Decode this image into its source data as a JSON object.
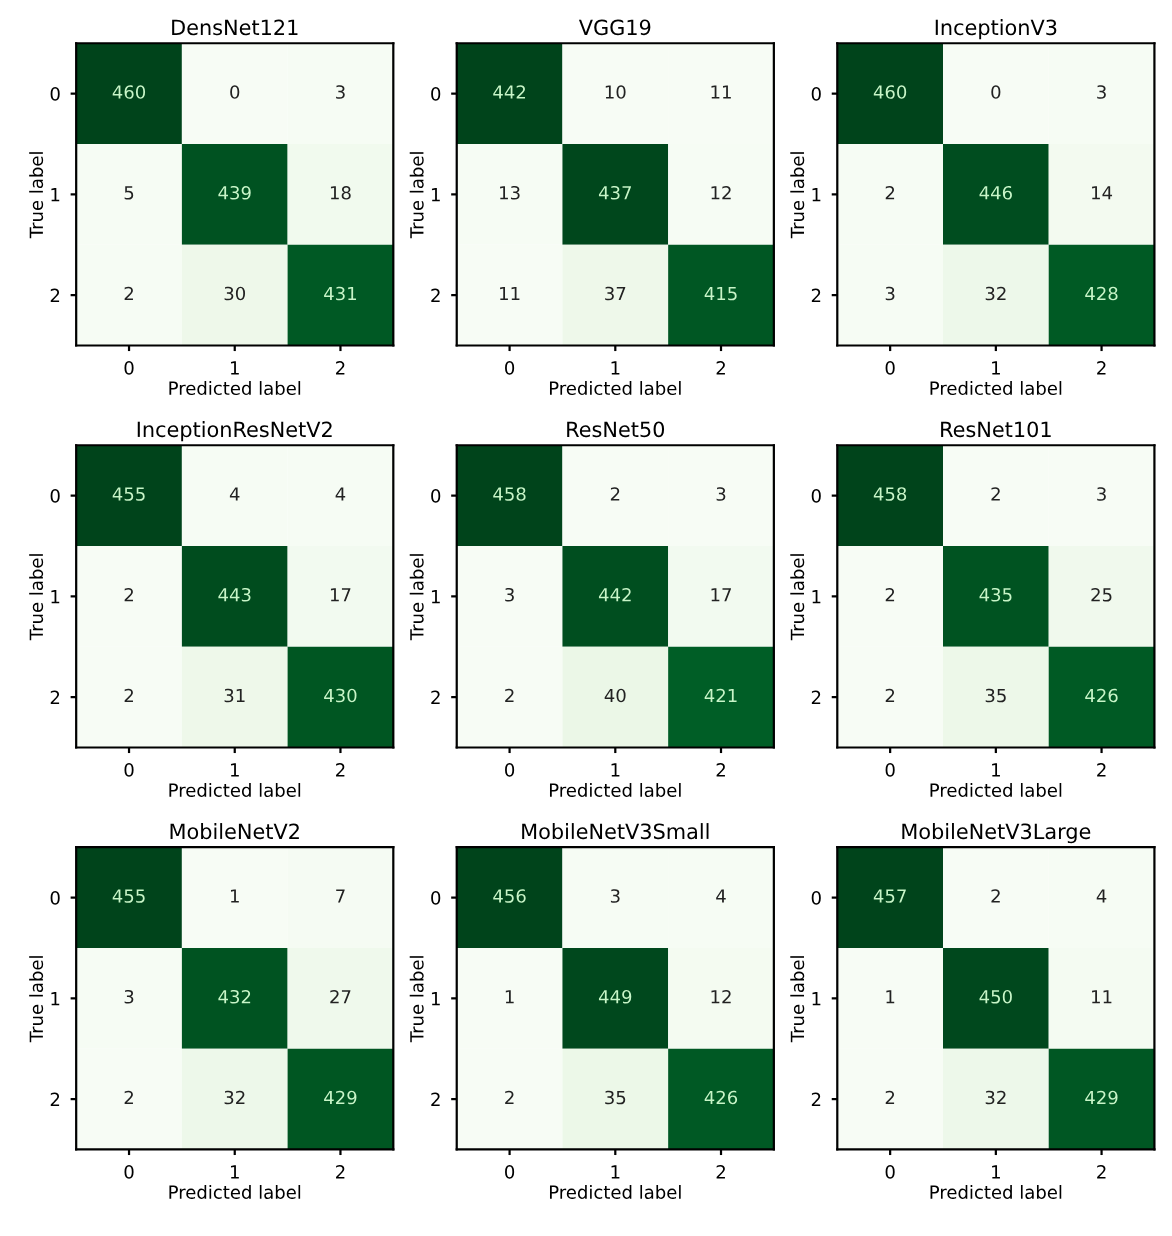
{
  "chart_data": [
    {
      "type": "heatmap",
      "title": "DensNet121",
      "xlabel": "Predicted label",
      "ylabel": "True label",
      "categories": [
        "0",
        "1",
        "2"
      ],
      "y_categories": [
        "0",
        "1",
        "2"
      ],
      "cells": [
        [
          460,
          0,
          3
        ],
        [
          5,
          439,
          18
        ],
        [
          2,
          30,
          431
        ]
      ],
      "data_labels": true
    },
    {
      "type": "heatmap",
      "title": "VGG19",
      "xlabel": "Predicted label",
      "ylabel": "True label",
      "categories": [
        "0",
        "1",
        "2"
      ],
      "y_categories": [
        "0",
        "1",
        "2"
      ],
      "cells": [
        [
          442,
          10,
          11
        ],
        [
          13,
          437,
          12
        ],
        [
          11,
          37,
          415
        ]
      ],
      "data_labels": true
    },
    {
      "type": "heatmap",
      "title": "InceptionV3",
      "xlabel": "Predicted label",
      "ylabel": "True label",
      "categories": [
        "0",
        "1",
        "2"
      ],
      "y_categories": [
        "0",
        "1",
        "2"
      ],
      "cells": [
        [
          460,
          0,
          3
        ],
        [
          2,
          446,
          14
        ],
        [
          3,
          32,
          428
        ]
      ],
      "data_labels": true
    },
    {
      "type": "heatmap",
      "title": "InceptionResNetV2",
      "xlabel": "Predicted label",
      "ylabel": "True label",
      "categories": [
        "0",
        "1",
        "2"
      ],
      "y_categories": [
        "0",
        "1",
        "2"
      ],
      "cells": [
        [
          455,
          4,
          4
        ],
        [
          2,
          443,
          17
        ],
        [
          2,
          31,
          430
        ]
      ],
      "data_labels": true
    },
    {
      "type": "heatmap",
      "title": "ResNet50",
      "xlabel": "Predicted label",
      "ylabel": "True label",
      "categories": [
        "0",
        "1",
        "2"
      ],
      "y_categories": [
        "0",
        "1",
        "2"
      ],
      "cells": [
        [
          458,
          2,
          3
        ],
        [
          3,
          442,
          17
        ],
        [
          2,
          40,
          421
        ]
      ],
      "data_labels": true
    },
    {
      "type": "heatmap",
      "title": "ResNet101",
      "xlabel": "Predicted label",
      "ylabel": "True label",
      "categories": [
        "0",
        "1",
        "2"
      ],
      "y_categories": [
        "0",
        "1",
        "2"
      ],
      "cells": [
        [
          458,
          2,
          3
        ],
        [
          2,
          435,
          25
        ],
        [
          2,
          35,
          426
        ]
      ],
      "data_labels": true
    },
    {
      "type": "heatmap",
      "title": "MobileNetV2",
      "xlabel": "Predicted label",
      "ylabel": "True label",
      "categories": [
        "0",
        "1",
        "2"
      ],
      "y_categories": [
        "0",
        "1",
        "2"
      ],
      "cells": [
        [
          455,
          1,
          7
        ],
        [
          3,
          432,
          27
        ],
        [
          2,
          32,
          429
        ]
      ],
      "data_labels": true
    },
    {
      "type": "heatmap",
      "title": "MobileNetV3Small",
      "xlabel": "Predicted label",
      "ylabel": "True label",
      "categories": [
        "0",
        "1",
        "2"
      ],
      "y_categories": [
        "0",
        "1",
        "2"
      ],
      "cells": [
        [
          456,
          3,
          4
        ],
        [
          1,
          449,
          12
        ],
        [
          2,
          35,
          426
        ]
      ],
      "data_labels": true
    },
    {
      "type": "heatmap",
      "title": "MobileNetV3Large",
      "xlabel": "Predicted label",
      "ylabel": "True label",
      "categories": [
        "0",
        "1",
        "2"
      ],
      "y_categories": [
        "0",
        "1",
        "2"
      ],
      "cells": [
        [
          457,
          2,
          4
        ],
        [
          1,
          450,
          11
        ],
        [
          2,
          32,
          429
        ]
      ],
      "data_labels": true
    }
  ]
}
